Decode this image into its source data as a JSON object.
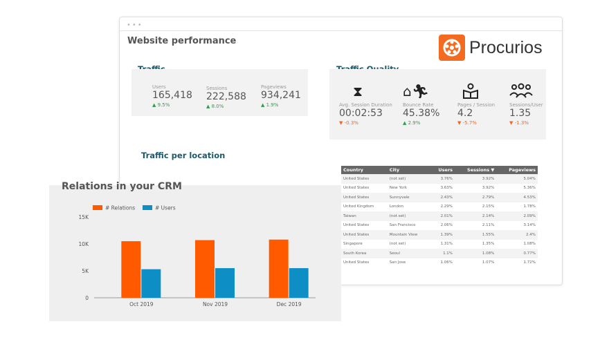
{
  "dashboard": {
    "title": "Website performance",
    "brand": "Procurios",
    "brand_color": "#f36b21"
  },
  "traffic": {
    "heading": "Traffic",
    "metrics": [
      {
        "label": "Users",
        "value": "165,418",
        "delta": "9.5%",
        "dir": "up"
      },
      {
        "label": "Sessions",
        "value": "222,588",
        "delta": "8.0%",
        "dir": "up"
      },
      {
        "label": "Pageviews",
        "value": "934,241",
        "delta": "1.9%",
        "dir": "up"
      }
    ]
  },
  "quality": {
    "heading": "Traffic Quality",
    "metrics": [
      {
        "icon": "hourglass-icon",
        "label": "Avg. Session Duration",
        "value": "00:02:53",
        "delta": "-0.3%",
        "dir": "down"
      },
      {
        "icon": "house-exit-icon",
        "label": "Bounce Rate",
        "value": "45.38%",
        "delta": "2.9%",
        "dir": "up"
      },
      {
        "icon": "reader-book-icon",
        "label": "Pages / Session",
        "value": "4.2",
        "delta": "-5.7%",
        "dir": "down"
      },
      {
        "icon": "users-group-icon",
        "label": "Sessions/User",
        "value": "1.35",
        "delta": "-1.3%",
        "dir": "down"
      }
    ]
  },
  "location": {
    "heading": "Traffic per location",
    "columns": [
      "Country",
      "City",
      "Users",
      "Sessions ▼",
      "Pageviews"
    ],
    "rows": [
      [
        "United States",
        "(not set)",
        "3.76%",
        "3.92%",
        "5.04%"
      ],
      [
        "United States",
        "New York",
        "3.63%",
        "3.92%",
        "5.36%"
      ],
      [
        "United States",
        "Sunnyvale",
        "2.43%",
        "2.79%",
        "4.53%"
      ],
      [
        "United Kingdom",
        "London",
        "2.29%",
        "2.15%",
        "1.78%"
      ],
      [
        "Taiwan",
        "(not set)",
        "2.01%",
        "2.14%",
        "2.09%"
      ],
      [
        "United States",
        "San Francisco",
        "2.06%",
        "2.11%",
        "3.14%"
      ],
      [
        "United States",
        "Mountain View",
        "1.39%",
        "1.55%",
        "2.4%"
      ],
      [
        "Singapore",
        "(not set)",
        "1.31%",
        "1.35%",
        "1.08%"
      ],
      [
        "South Korea",
        "Seoul",
        "1.1%",
        "1.08%",
        "0.77%"
      ],
      [
        "United States",
        "San Jose",
        "1.06%",
        "1.07%",
        "1.72%"
      ]
    ]
  },
  "crm": {
    "title": "Relations in your CRM"
  },
  "chart_data": {
    "type": "bar",
    "categories": [
      "Oct 2019",
      "Nov 2019",
      "Dec 2019"
    ],
    "series": [
      {
        "name": "# Relations",
        "color": "#ff5a00",
        "values": [
          10500,
          10700,
          10800
        ]
      },
      {
        "name": "# Users",
        "color": "#0d8fc6",
        "values": [
          5300,
          5500,
          5500
        ]
      }
    ],
    "ylim": [
      0,
      15000
    ],
    "yticks": [
      "0",
      "5K",
      "10K",
      "15K"
    ],
    "legend": "top-left",
    "grid": false
  }
}
